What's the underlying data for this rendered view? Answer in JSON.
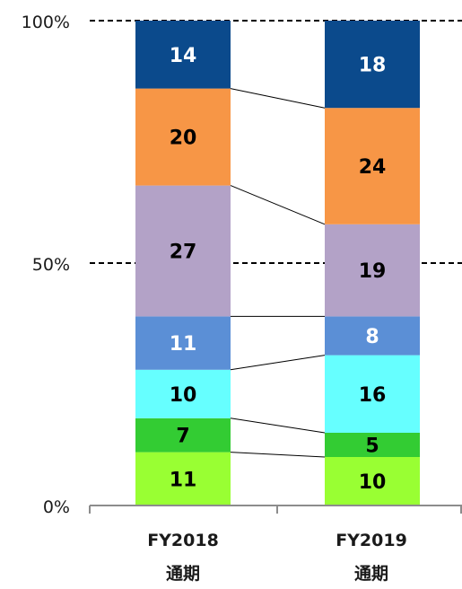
{
  "chart_data": {
    "type": "bar",
    "stacked": true,
    "normalized": true,
    "title": "",
    "xlabel": "",
    "ylabel": "",
    "ylim": [
      0,
      100
    ],
    "y_ticks": [
      "0%",
      "50%",
      "100%"
    ],
    "grid": "dashed reference lines at 50% and 100%",
    "legend": "none",
    "categories": [
      {
        "line1": "FY2018",
        "line2": "通期"
      },
      {
        "line1": "FY2019",
        "line2": "通期"
      }
    ],
    "series": [
      {
        "values": [
          11,
          10
        ],
        "color": "#99ff33",
        "label_color": "#000000"
      },
      {
        "values": [
          7,
          5
        ],
        "color": "#33cc33",
        "label_color": "#000000"
      },
      {
        "values": [
          10,
          16
        ],
        "color": "#66ffff",
        "label_color": "#000000"
      },
      {
        "values": [
          11,
          8
        ],
        "color": "#5b8fd6",
        "label_color": "#ffffff"
      },
      {
        "values": [
          27,
          19
        ],
        "color": "#b3a2c7",
        "label_color": "#000000"
      },
      {
        "values": [
          20,
          24
        ],
        "color": "#f79646",
        "label_color": "#000000"
      },
      {
        "values": [
          14,
          18
        ],
        "color": "#0b4a8c",
        "label_color": "#ffffff"
      }
    ]
  }
}
